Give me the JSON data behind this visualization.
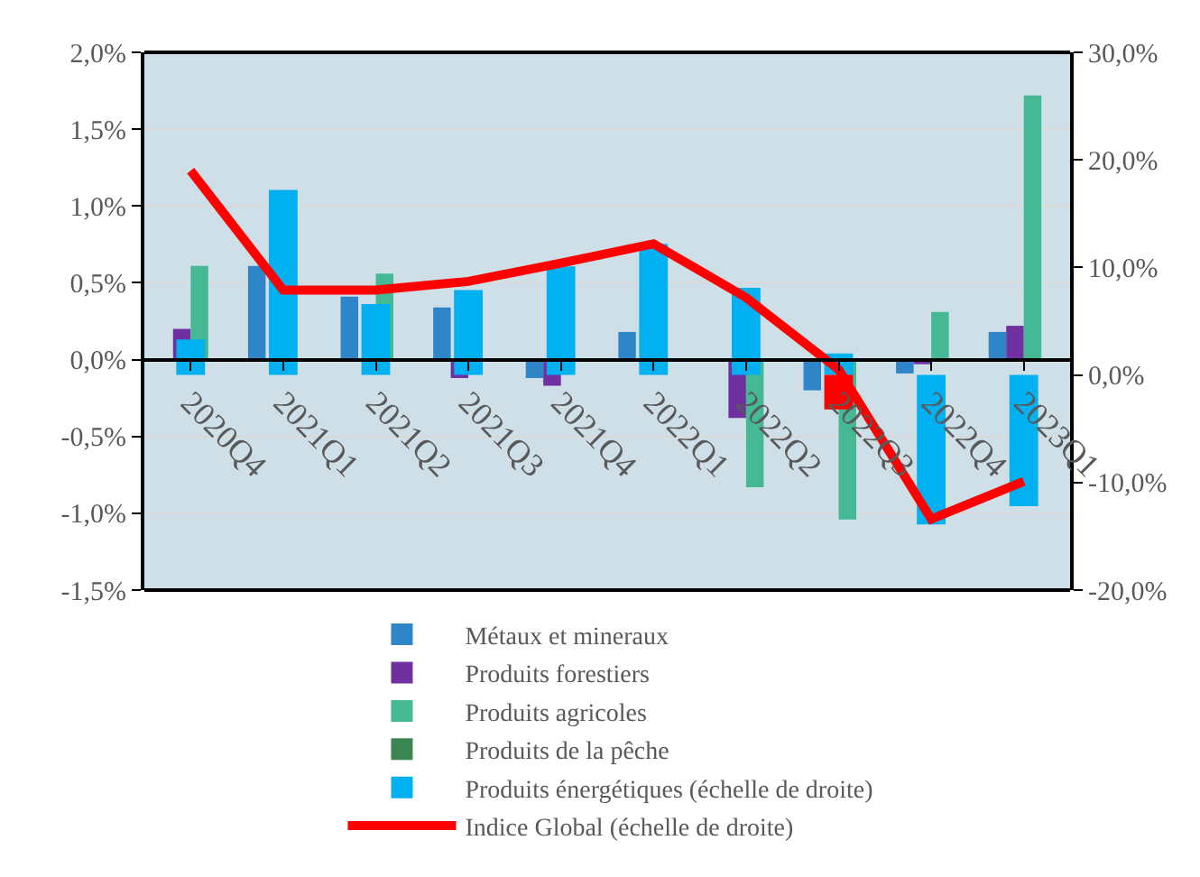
{
  "chart_data": {
    "type": "bar",
    "categories": [
      "2020Q4",
      "2021Q1",
      "2021Q2",
      "2021Q3",
      "2021Q4",
      "2022Q1",
      "2022Q2",
      "2022Q3",
      "2022Q4",
      "2023Q1"
    ],
    "series": [
      {
        "name": "Métaux et mineraux",
        "color": "#2e86c8",
        "values": [
          null,
          0.61,
          0.41,
          0.34,
          -0.12,
          0.18,
          null,
          -0.2,
          -0.09,
          0.18
        ]
      },
      {
        "name": "Produits forestiers",
        "color": "#7030a0",
        "values": [
          0.2,
          null,
          null,
          -0.12,
          -0.17,
          null,
          -0.38,
          null,
          -0.03,
          0.22
        ]
      },
      {
        "name": "Produits agricoles",
        "color": "#44b994",
        "values": [
          0.61,
          null,
          0.56,
          null,
          null,
          null,
          -0.83,
          -1.04,
          0.31,
          1.72
        ]
      },
      {
        "name": "Produits de la pêche",
        "color": "#3a8552",
        "values": [
          null,
          null,
          null,
          null,
          null,
          null,
          null,
          null,
          null,
          null
        ]
      },
      {
        "name": "Produits énergétiques (échelle de droite)",
        "color": "#00b0f0",
        "axis": "y2",
        "values": [
          3.3,
          17.2,
          6.6,
          7.9,
          10.1,
          12.2,
          8.1,
          2.0,
          -13.9,
          -12.2
        ]
      },
      {
        "color": "#ff0000",
        "axis": "y2",
        "values": [
          null,
          null,
          null,
          null,
          null,
          null,
          null,
          -3.2,
          null,
          null
        ]
      },
      {
        "name": "Indice Global (échelle de droite)",
        "type": "line",
        "color": "#ff0000",
        "axis": "y2",
        "values": [
          19.0,
          7.9,
          7.9,
          8.7,
          10.4,
          12.2,
          7.2,
          0.5,
          -13.4,
          -9.9
        ]
      }
    ],
    "ylim": [
      -1.5,
      2.0
    ],
    "yticks": [
      {
        "value": -1.5,
        "label": "-1,5%"
      },
      {
        "value": -1.0,
        "label": "-1,0%"
      },
      {
        "value": -0.5,
        "label": "-0,5%"
      },
      {
        "value": 0,
        "label": "0,0%"
      },
      {
        "value": 0.5,
        "label": "0,5%"
      },
      {
        "value": 1.0,
        "label": "1,0%"
      },
      {
        "value": 1.5,
        "label": "1,5%"
      },
      {
        "value": 2.0,
        "label": "2,0%"
      }
    ],
    "y2lim": [
      -20,
      30
    ],
    "y2ticks": [
      {
        "value": -20,
        "label": "-20,0%"
      },
      {
        "value": -10,
        "label": "-10,0%"
      },
      {
        "value": 0,
        "label": "0,0%"
      },
      {
        "value": 10,
        "label": "10,0%"
      },
      {
        "value": 20,
        "label": "20,0%"
      },
      {
        "value": 30,
        "label": "30,0%"
      }
    ],
    "grid": "y",
    "legend": "bottom",
    "line_style": "solid",
    "marker": "none"
  }
}
